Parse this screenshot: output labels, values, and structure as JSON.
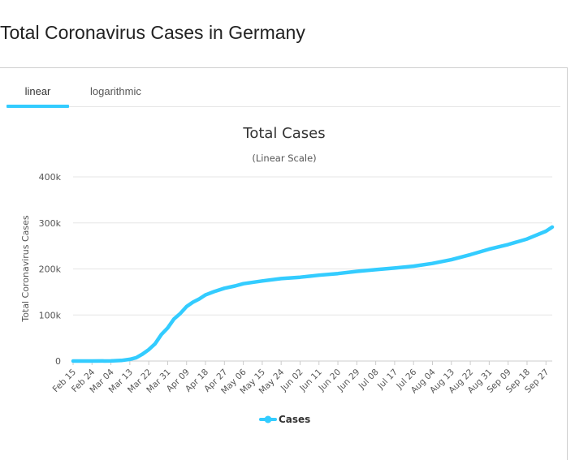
{
  "page": {
    "title": "Total Coronavirus Cases in Germany"
  },
  "tabs": {
    "linear_label": "linear",
    "log_label": "logarithmic",
    "active": "linear"
  },
  "colors": {
    "series": "#33ccff",
    "tab_underline": "#33ccff"
  },
  "chart_data": {
    "type": "line",
    "title": "Total Cases",
    "subtitle": "(Linear Scale)",
    "xlabel": "",
    "ylabel": "Total Coronavirus Cases",
    "ylim": [
      0,
      400000
    ],
    "y_ticks": [
      0,
      100000,
      200000,
      300000,
      400000
    ],
    "y_tick_labels": [
      "0",
      "100k",
      "200k",
      "300k",
      "400k"
    ],
    "x_tick_labels": [
      "Feb 15",
      "Feb 24",
      "Mar 04",
      "Mar 13",
      "Mar 22",
      "Mar 31",
      "Apr 09",
      "Apr 18",
      "Apr 27",
      "May 06",
      "May 15",
      "May 24",
      "Jun 02",
      "Jun 11",
      "Jun 20",
      "Jun 29",
      "Jul 08",
      "Jul 17",
      "Jul 26",
      "Aug 04",
      "Aug 13",
      "Aug 22",
      "Aug 31",
      "Sep 09",
      "Sep 18",
      "Sep 27"
    ],
    "grid": true,
    "legend_position": "bottom",
    "series": [
      {
        "name": "Cases",
        "color": "#33ccff",
        "x": [
          "Feb 15",
          "Feb 24",
          "Mar 04",
          "Mar 09",
          "Mar 13",
          "Mar 16",
          "Mar 19",
          "Mar 22",
          "Mar 25",
          "Mar 28",
          "Mar 31",
          "Apr 03",
          "Apr 06",
          "Apr 09",
          "Apr 12",
          "Apr 15",
          "Apr 18",
          "Apr 22",
          "Apr 27",
          "May 02",
          "May 06",
          "May 15",
          "May 24",
          "Jun 02",
          "Jun 11",
          "Jun 20",
          "Jun 29",
          "Jul 08",
          "Jul 17",
          "Jul 26",
          "Aug 04",
          "Aug 13",
          "Aug 22",
          "Aug 31",
          "Sep 09",
          "Sep 18",
          "Sep 27",
          "Sep 30"
        ],
        "values": [
          16,
          16,
          262,
          1200,
          3700,
          7200,
          15000,
          24900,
          37300,
          57700,
          71800,
          91200,
          103200,
          118200,
          127800,
          134800,
          143700,
          150600,
          158000,
          163000,
          168000,
          174000,
          179000,
          182000,
          186500,
          190000,
          194800,
          198500,
          202000,
          206000,
          212000,
          220000,
          231000,
          243000,
          253000,
          265000,
          282000,
          291000
        ]
      }
    ]
  }
}
